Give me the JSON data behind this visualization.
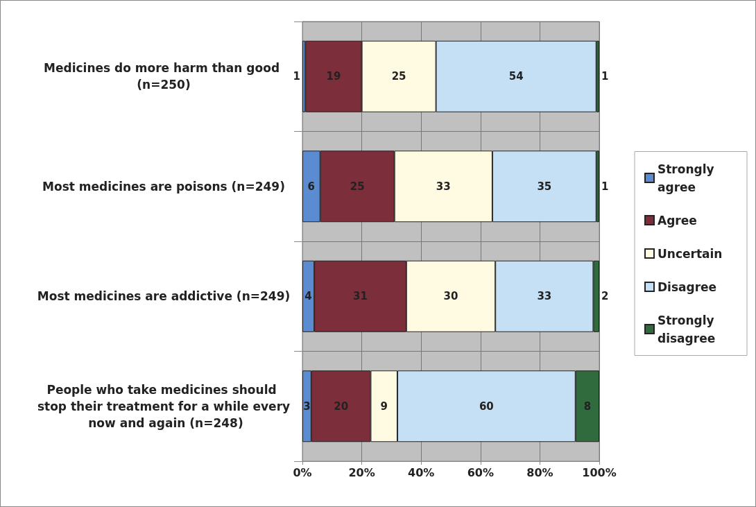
{
  "chart_data": {
    "type": "bar",
    "orientation": "horizontal",
    "stacked": true,
    "data_labels": true,
    "categories": [
      "Medicines do more harm than good (n=250)",
      "Most medicines are poisons (n=249)",
      "Most medicines are addictive (n=249)",
      "People who take medicines should stop their treatment for a while every now and again (n=248)"
    ],
    "series": [
      {
        "name": "Strongly agree",
        "color": "#5b8bd0",
        "values": [
          1,
          6,
          4,
          3
        ]
      },
      {
        "name": "Agree",
        "color": "#7c2e3b",
        "values": [
          19,
          25,
          31,
          20
        ]
      },
      {
        "name": "Uncertain",
        "color": "#fffbe3",
        "values": [
          25,
          33,
          30,
          9
        ]
      },
      {
        "name": "Disagree",
        "color": "#c5e0f5",
        "values": [
          54,
          35,
          33,
          60
        ]
      },
      {
        "name": "Strongly disagree",
        "color": "#2f6b3c",
        "values": [
          1,
          1,
          2,
          8
        ]
      }
    ],
    "xlim": [
      0,
      100
    ],
    "xticks": [
      {
        "value": 0,
        "label": "0%"
      },
      {
        "value": 20,
        "label": "20%"
      },
      {
        "value": 40,
        "label": "40%"
      },
      {
        "value": 60,
        "label": "60%"
      },
      {
        "value": 80,
        "label": "80%"
      },
      {
        "value": 100,
        "label": "100%"
      }
    ],
    "grid": true,
    "legend": "right"
  }
}
